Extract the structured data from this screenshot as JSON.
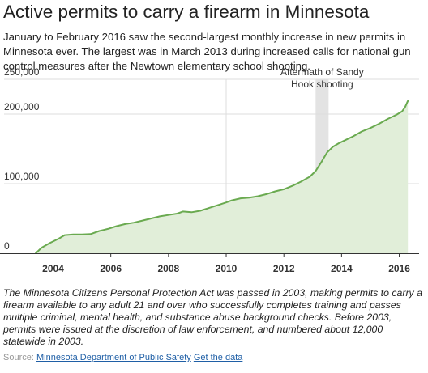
{
  "header": {
    "title": "Active permits to carry a firearm in Minnesota",
    "subtitle": "January to February 2016 saw the second-largest monthly increase in new permits in Minnesota ever. The largest was in March 2013 during increased calls for national gun control measures after the Newtown elementary school shooting."
  },
  "footnote": "The Minnesota Citizens Personal Protection Act was passed in 2003, making permits to carry a firearm available to any adult 21 and over who successfully completes training and passes multiple criminal, mental health, and substance abuse background checks. Before 2003, permits were issued at the discretion of law enforcement, and numbered about 12,000 statewide in 2003.",
  "source": {
    "label": "Source:",
    "link_text": "Minnesota Department of Public Safety",
    "data_link_text": "Get the data"
  },
  "colors": {
    "line": "#6aaa50",
    "area": "#e1eed9",
    "highlight_band": "#e3e3e3",
    "gridline": "#dddddd",
    "axis": "#333333",
    "link": "#1f5fa6"
  },
  "chart_data": {
    "type": "area",
    "title": "",
    "xlabel": "",
    "ylabel": "",
    "xlim": [
      2002.3,
      2016.35
    ],
    "ylim": [
      0,
      250000
    ],
    "grid": true,
    "y_ticks": [
      {
        "value": 0,
        "label": "0"
      },
      {
        "value": 100000,
        "label": "100,000"
      },
      {
        "value": 200000,
        "label": "200,000"
      },
      {
        "value": 250000,
        "label": "250,000"
      }
    ],
    "x_ticks": [
      {
        "value": 2004,
        "label": "2004"
      },
      {
        "value": 2006,
        "label": "2006"
      },
      {
        "value": 2008,
        "label": "2008"
      },
      {
        "value": 2010,
        "label": "2010"
      },
      {
        "value": 2012,
        "label": "2012"
      },
      {
        "value": 2014,
        "label": "2014"
      },
      {
        "value": 2016,
        "label": "2016"
      }
    ],
    "reference_line_x": 2010,
    "highlight": {
      "x_start": 2013.1,
      "x_end": 2013.55,
      "label_lines": [
        "Aftermath of Sandy",
        "Hook shooting"
      ]
    },
    "series": [
      {
        "x": [
          2003.4,
          2003.6,
          2003.9,
          2004.2,
          2004.4,
          2004.7,
          2005.0,
          2005.3,
          2005.6,
          2005.9,
          2006.2,
          2006.5,
          2006.8,
          2007.1,
          2007.4,
          2007.7,
          2008.0,
          2008.3,
          2008.5,
          2008.8,
          2009.1,
          2009.4,
          2009.7,
          2010.0,
          2010.2,
          2010.5,
          2010.8,
          2011.1,
          2011.4,
          2011.7,
          2012.0,
          2012.3,
          2012.6,
          2012.9,
          2013.1,
          2013.3,
          2013.5,
          2013.7,
          2013.9,
          2014.1,
          2014.4,
          2014.7,
          2015.0,
          2015.3,
          2015.6,
          2015.9,
          2016.1,
          2016.2,
          2016.3
        ],
        "values": [
          0,
          8000,
          15000,
          21000,
          26000,
          27000,
          27000,
          27500,
          32000,
          35000,
          39000,
          42000,
          44000,
          47000,
          50000,
          53000,
          55000,
          57000,
          60000,
          59000,
          61000,
          65000,
          69000,
          73000,
          76000,
          79000,
          80000,
          82000,
          85000,
          89000,
          92000,
          97000,
          103000,
          110000,
          118000,
          131000,
          145000,
          153000,
          158000,
          162000,
          168000,
          175000,
          180000,
          186000,
          193000,
          199000,
          204000,
          210000,
          219000
        ]
      }
    ]
  }
}
